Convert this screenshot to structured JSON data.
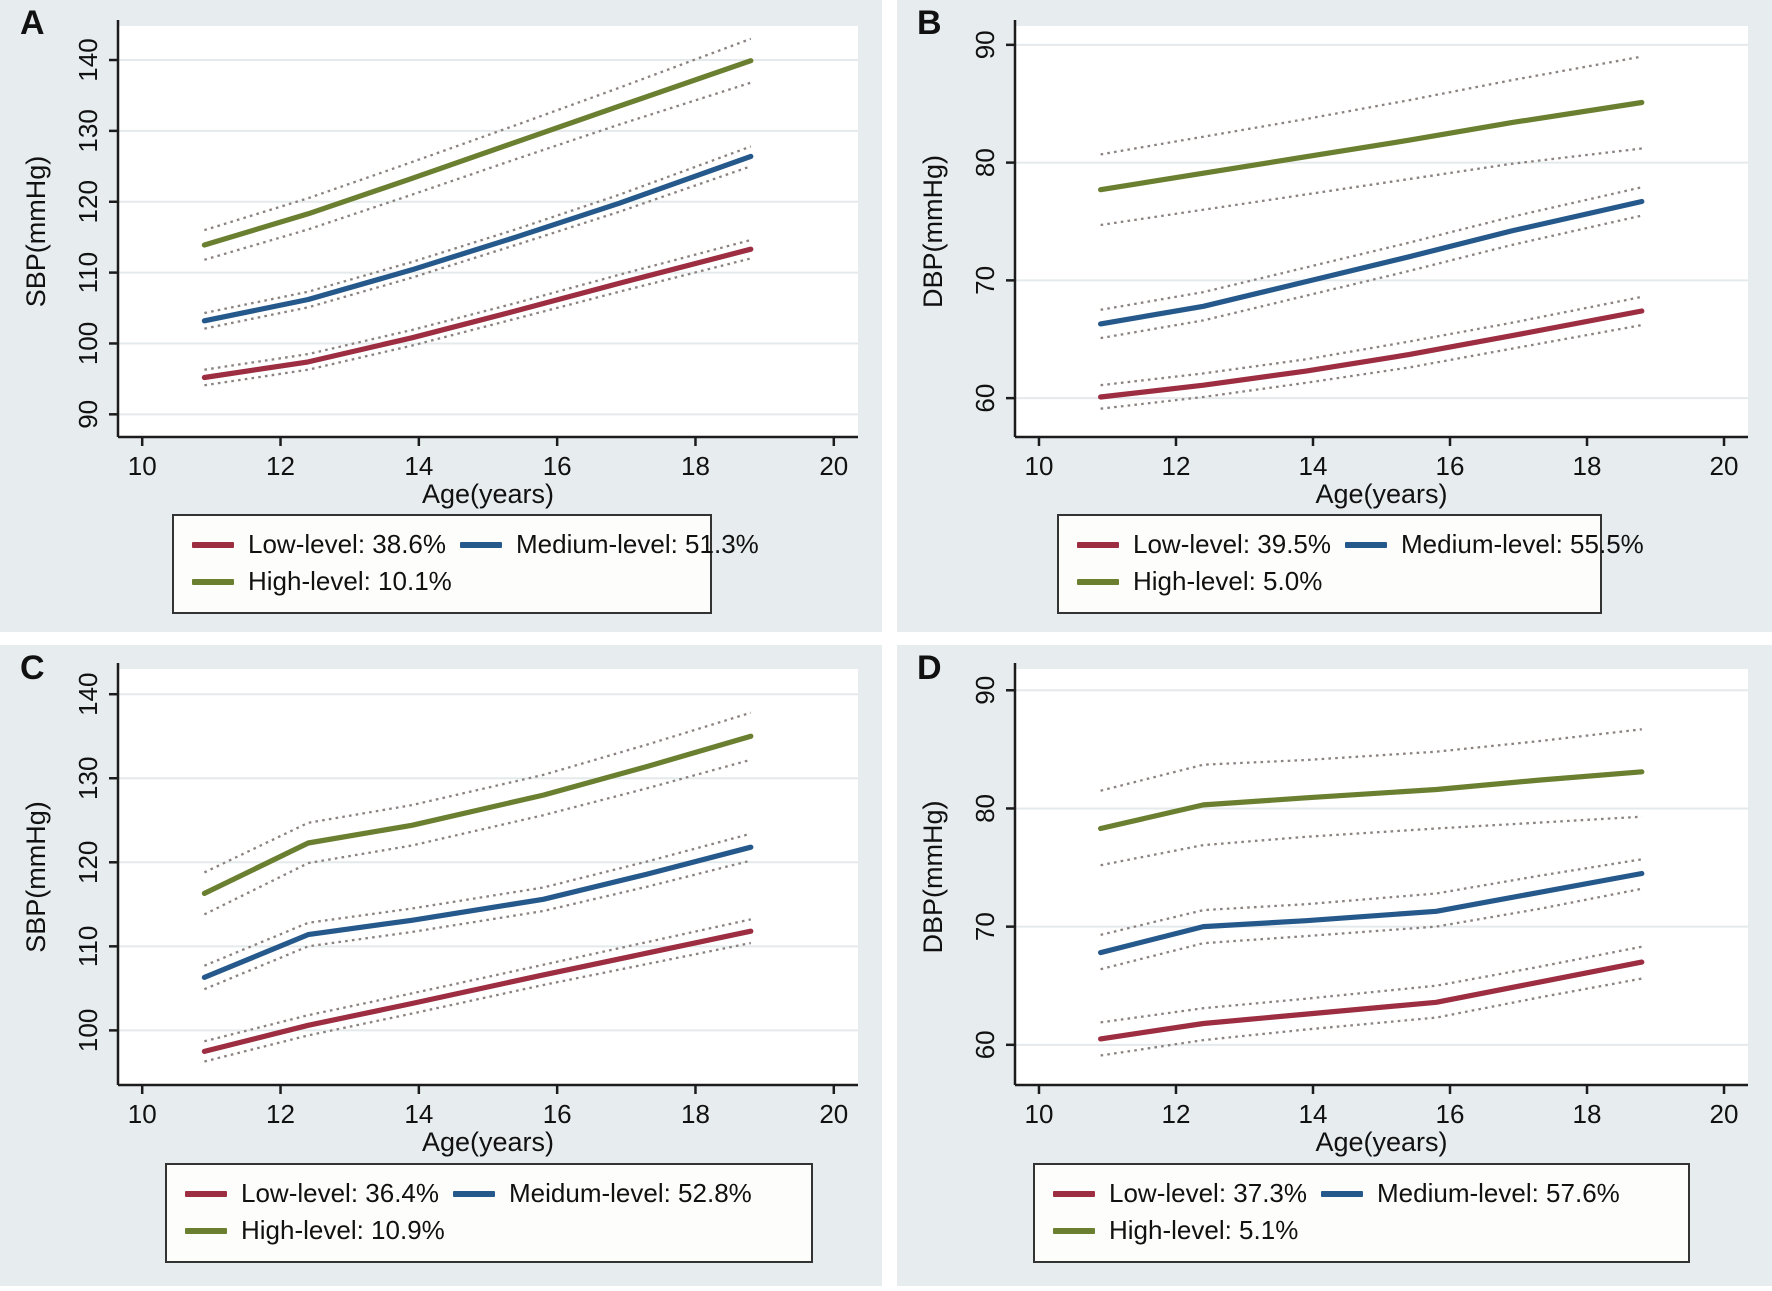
{
  "colors": {
    "panel_background": "#e7ecef",
    "plot_background": "#ffffff",
    "gridline": "#e4eaec",
    "axis": "#1c1c1c",
    "text": "#111111",
    "ci_dash": "#8b837f",
    "legend_border": "#333333",
    "low_level": "#9d2d41",
    "medium_level": "#26598b",
    "high_level": "#6b7f31"
  },
  "chart_data": [
    {
      "panel_label": "A",
      "type": "line",
      "xlabel": "Age(years)",
      "ylabel": "SBP(mmHg)",
      "x_ticks": [
        10,
        12,
        14,
        16,
        18,
        20
      ],
      "y_ticks": [
        90,
        100,
        110,
        120,
        130,
        140
      ],
      "xlim": [
        9.65,
        20.35
      ],
      "ylim": [
        86.8,
        144.8
      ],
      "grid": "horizontal",
      "legend_position": "below",
      "x": [
        10.9,
        12.4,
        13.9,
        15.4,
        16.9,
        18.8
      ],
      "series": [
        {
          "name": "Low-level",
          "legend_label": "Low-level: 38.6%",
          "color": "#9d2d41",
          "values": [
            95.2,
            97.4,
            100.8,
            104.6,
            108.5,
            113.3
          ],
          "ci_upper": [
            96.3,
            98.5,
            101.9,
            105.7,
            109.7,
            114.6
          ],
          "ci_lower": [
            94.1,
            96.3,
            99.7,
            103.5,
            107.3,
            112.0
          ],
          "ci_style": "dashed"
        },
        {
          "name": "Medium-level",
          "legend_label": "Medium-level: 51.3%",
          "color": "#26598b",
          "values": [
            103.2,
            106.2,
            110.4,
            115.0,
            119.8,
            126.4
          ],
          "ci_upper": [
            104.3,
            107.3,
            111.5,
            116.1,
            121.0,
            127.8
          ],
          "ci_lower": [
            102.1,
            105.1,
            109.3,
            113.9,
            118.6,
            125.0
          ],
          "ci_style": "dashed"
        },
        {
          "name": "High-level",
          "legend_label": "High-level: 10.1%",
          "color": "#6b7f31",
          "values": [
            113.9,
            118.3,
            123.3,
            128.4,
            133.5,
            139.9
          ],
          "ci_upper": [
            116.0,
            120.5,
            125.6,
            130.8,
            136.1,
            143.0
          ],
          "ci_lower": [
            111.8,
            116.1,
            121.0,
            126.0,
            130.9,
            136.8
          ],
          "ci_style": "dashed"
        }
      ]
    },
    {
      "panel_label": "B",
      "type": "line",
      "xlabel": "Age(years)",
      "ylabel": "DBP(mmHg)",
      "x_ticks": [
        10,
        12,
        14,
        16,
        18,
        20
      ],
      "y_ticks": [
        60,
        70,
        80,
        90
      ],
      "xlim": [
        9.65,
        20.35
      ],
      "ylim": [
        56.7,
        91.6
      ],
      "grid": "horizontal",
      "legend_position": "below",
      "x": [
        10.9,
        12.4,
        13.9,
        15.4,
        16.9,
        18.8
      ],
      "series": [
        {
          "name": "Low-level",
          "legend_label": "Low-level: 39.5%",
          "color": "#9d2d41",
          "values": [
            60.1,
            61.1,
            62.3,
            63.7,
            65.3,
            67.4
          ],
          "ci_upper": [
            61.1,
            62.1,
            63.3,
            64.8,
            66.4,
            68.6
          ],
          "ci_lower": [
            59.1,
            60.1,
            61.3,
            62.6,
            64.2,
            66.2
          ],
          "ci_style": "dashed"
        },
        {
          "name": "Medium-level",
          "legend_label": "Medium-level: 55.5%",
          "color": "#26598b",
          "values": [
            66.3,
            67.8,
            69.9,
            72.0,
            74.2,
            76.7
          ],
          "ci_upper": [
            67.5,
            69.0,
            71.1,
            73.2,
            75.4,
            77.9
          ],
          "ci_lower": [
            65.1,
            66.6,
            68.7,
            70.8,
            73.0,
            75.5
          ],
          "ci_style": "dashed"
        },
        {
          "name": "High-level",
          "legend_label": "High-level: 5.0%",
          "color": "#6b7f31",
          "values": [
            77.7,
            79.1,
            80.5,
            81.9,
            83.4,
            85.1
          ],
          "ci_upper": [
            80.7,
            82.2,
            83.7,
            85.3,
            87.0,
            89.0
          ],
          "ci_lower": [
            74.7,
            76.0,
            77.3,
            78.6,
            79.9,
            81.2
          ],
          "ci_style": "dashed"
        }
      ]
    },
    {
      "panel_label": "C",
      "type": "line",
      "xlabel": "Age(years)",
      "ylabel": "SBP(mmHg)",
      "x_ticks": [
        10,
        12,
        14,
        16,
        18,
        20
      ],
      "y_ticks": [
        100,
        110,
        120,
        130,
        140
      ],
      "xlim": [
        9.65,
        20.35
      ],
      "ylim": [
        93.5,
        143.0
      ],
      "grid": "horizontal",
      "legend_position": "below",
      "x": [
        10.9,
        12.4,
        13.9,
        15.8,
        17.3,
        18.8
      ],
      "series": [
        {
          "name": "Low-level",
          "legend_label": "Low-level: 36.4%",
          "color": "#9d2d41",
          "values": [
            97.5,
            100.6,
            103.2,
            106.6,
            109.2,
            111.8
          ],
          "ci_upper": [
            98.7,
            101.8,
            104.4,
            107.8,
            110.5,
            113.2
          ],
          "ci_lower": [
            96.3,
            99.4,
            102.0,
            105.4,
            107.9,
            110.4
          ],
          "ci_style": "dashed"
        },
        {
          "name": "Meidum-level",
          "legend_label": "Meidum-level: 52.8%",
          "color": "#26598b",
          "values": [
            106.3,
            111.4,
            113.1,
            115.6,
            118.6,
            121.8
          ],
          "ci_upper": [
            107.7,
            112.8,
            114.5,
            117.0,
            120.1,
            123.4
          ],
          "ci_lower": [
            104.9,
            110.0,
            111.7,
            114.2,
            117.1,
            120.2
          ],
          "ci_style": "dashed"
        },
        {
          "name": "High-level",
          "legend_label": "High-level: 10.9%",
          "color": "#6b7f31",
          "values": [
            116.3,
            122.3,
            124.4,
            128.0,
            131.4,
            135.0
          ],
          "ci_upper": [
            118.8,
            124.7,
            126.8,
            130.4,
            134.0,
            137.8
          ],
          "ci_lower": [
            113.8,
            119.9,
            122.0,
            125.6,
            128.8,
            132.2
          ],
          "ci_style": "dashed"
        }
      ]
    },
    {
      "panel_label": "D",
      "type": "line",
      "xlabel": "Age(years)",
      "ylabel": "DBP(mmHg)",
      "x_ticks": [
        10,
        12,
        14,
        16,
        18,
        20
      ],
      "y_ticks": [
        60,
        70,
        80,
        90
      ],
      "xlim": [
        9.65,
        20.35
      ],
      "ylim": [
        56.6,
        91.8
      ],
      "grid": "horizontal",
      "legend_position": "below",
      "x": [
        10.9,
        12.4,
        13.9,
        15.8,
        17.3,
        18.8
      ],
      "series": [
        {
          "name": "Low-level",
          "legend_label": "Low-level: 37.3%",
          "color": "#9d2d41",
          "values": [
            60.5,
            61.8,
            62.6,
            63.6,
            65.3,
            67.0
          ],
          "ci_upper": [
            61.9,
            63.1,
            63.9,
            65.0,
            66.6,
            68.3
          ],
          "ci_lower": [
            59.1,
            60.4,
            61.3,
            62.3,
            64.0,
            65.6
          ],
          "ci_style": "dashed"
        },
        {
          "name": "Medium-level",
          "legend_label": "Medium-level: 57.6%",
          "color": "#26598b",
          "values": [
            67.8,
            70.0,
            70.5,
            71.3,
            72.9,
            74.5
          ],
          "ci_upper": [
            69.3,
            71.4,
            71.9,
            72.8,
            74.3,
            75.7
          ],
          "ci_lower": [
            66.4,
            68.6,
            69.2,
            70.0,
            71.5,
            73.2
          ],
          "ci_style": "dashed"
        },
        {
          "name": "High-level",
          "legend_label": "High-level: 5.1%",
          "color": "#6b7f31",
          "values": [
            78.3,
            80.3,
            80.9,
            81.6,
            82.4,
            83.1
          ],
          "ci_upper": [
            81.5,
            83.7,
            84.1,
            84.8,
            85.7,
            86.7
          ],
          "ci_lower": [
            75.2,
            76.9,
            77.6,
            78.3,
            78.8,
            79.3
          ],
          "ci_style": "dashed"
        }
      ]
    }
  ]
}
